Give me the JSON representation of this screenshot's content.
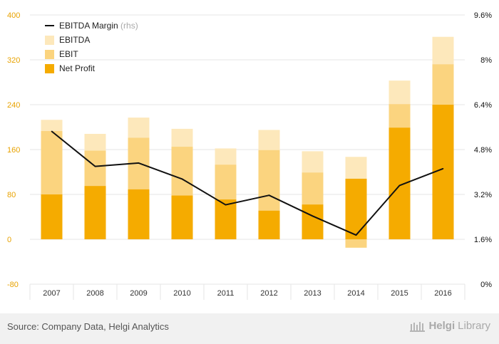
{
  "chart_data": {
    "type": "bar",
    "categories": [
      "2007",
      "2008",
      "2009",
      "2010",
      "2011",
      "2012",
      "2013",
      "2014",
      "2015",
      "2016"
    ],
    "series": [
      {
        "name": "Net Profit",
        "kind": "bar",
        "values": [
          80,
          95,
          89,
          78,
          71,
          51,
          62,
          108,
          199,
          240
        ]
      },
      {
        "name": "EBIT",
        "kind": "bar",
        "values": [
          193,
          158,
          181,
          165,
          133,
          159,
          119,
          -15,
          241,
          312
        ]
      },
      {
        "name": "EBITDA",
        "kind": "bar",
        "values": [
          213,
          188,
          217,
          197,
          162,
          195,
          157,
          147,
          283,
          361
        ]
      },
      {
        "name": "EBITDA Margin",
        "kind": "line",
        "axis": "right",
        "values": [
          5.45,
          4.2,
          4.32,
          3.75,
          2.83,
          3.17,
          2.43,
          1.75,
          3.52,
          4.12
        ]
      }
    ],
    "y_left": {
      "min": -80,
      "max": 400,
      "ticks": [
        -80,
        0,
        80,
        160,
        240,
        320,
        400
      ]
    },
    "y_right": {
      "min": 0,
      "max": 9.6,
      "ticks": [
        "0%",
        "1.6%",
        "3.2%",
        "4.8%",
        "6.4%",
        "8%",
        "9.6%"
      ]
    },
    "legend": [
      {
        "label": "EBITDA Margin",
        "suffix": "(rhs)",
        "type": "line",
        "color": "#111111"
      },
      {
        "label": "EBITDA",
        "type": "box",
        "color": "#fde8bb"
      },
      {
        "label": "EBIT",
        "type": "box",
        "color": "#fbd47f"
      },
      {
        "label": "Net Profit",
        "type": "box",
        "color": "#f5ab00"
      }
    ],
    "legend_position": "top-left",
    "colors": {
      "net_profit": "#f5ab00",
      "ebit": "#fbd47f",
      "ebitda": "#fde8bb",
      "line": "#111111",
      "left_axis_text": "#e8a200",
      "grid": "#e5e5e5"
    }
  },
  "footer": {
    "source": "Source: Company Data, Helgi Analytics",
    "brand_a": "Helgi",
    "brand_b": "Library"
  }
}
